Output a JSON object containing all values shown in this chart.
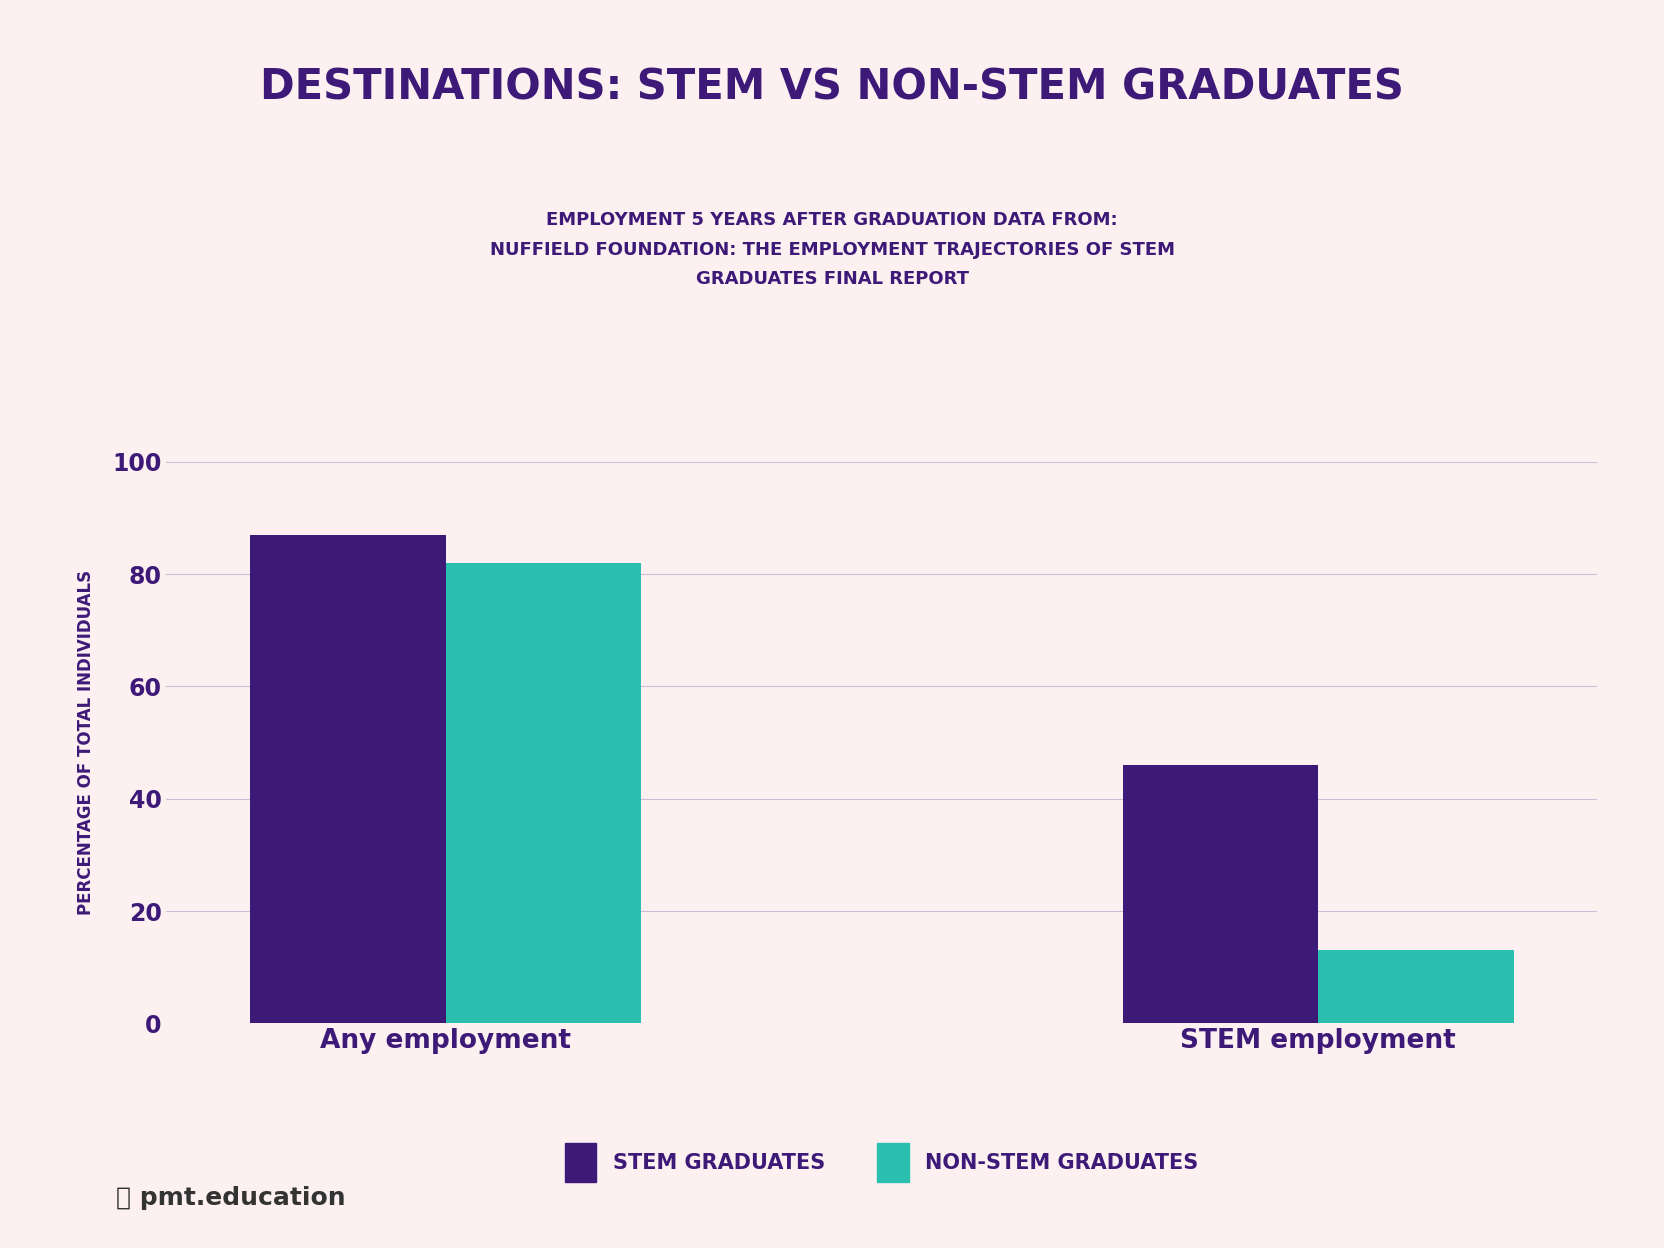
{
  "title": "DESTINATIONS: STEM VS NON-STEM GRADUATES",
  "subtitle": "EMPLOYMENT 5 YEARS AFTER GRADUATION DATA FROM:\nNUFFIELD FOUNDATION: THE EMPLOYMENT TRAJECTORIES OF STEM\nGRADUATES FINAL REPORT",
  "categories": [
    "Any employment",
    "STEM employment"
  ],
  "stem_values": [
    87,
    46
  ],
  "non_stem_values": [
    82,
    13
  ],
  "stem_color": "#3d1a78",
  "non_stem_color": "#2abfaf",
  "ylabel": "PERCENTAGE OF TOTAL INDIVIDUALS",
  "ylim": [
    0,
    100
  ],
  "yticks": [
    0,
    20,
    40,
    60,
    80,
    100
  ],
  "background_color": "#fdf0f0",
  "title_color": "#3d1a78",
  "subtitle_color": "#3d1a78",
  "tick_color": "#3d1a78",
  "grid_color": "#c8c0d8",
  "legend_stem_label": "STEM GRADUATES",
  "legend_non_stem_label": "NON-STEM GRADUATES",
  "bar_width": 0.28,
  "title_fontsize": 30,
  "subtitle_fontsize": 13,
  "ylabel_fontsize": 12,
  "tick_fontsize": 17,
  "legend_fontsize": 15,
  "xtick_fontsize": 19
}
